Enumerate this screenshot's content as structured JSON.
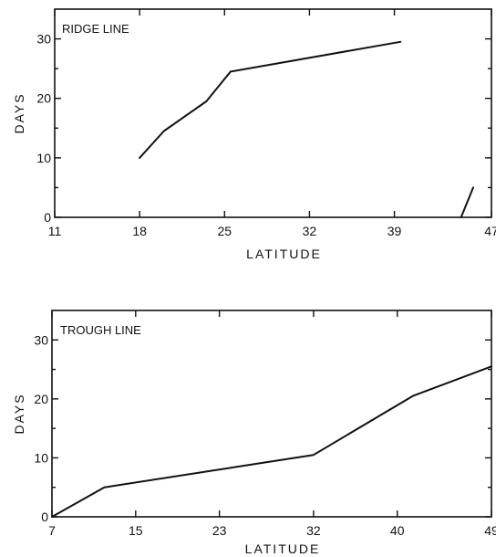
{
  "chart_data": [
    {
      "type": "line",
      "title": "RIDGE LINE",
      "xlabel": "LATITUDE",
      "ylabel": "DAYS",
      "x_ticks": [
        "11",
        "18",
        "25",
        "32",
        "39",
        "47"
      ],
      "y_ticks": [
        "0",
        "10",
        "20",
        "30"
      ],
      "xlim": [
        11,
        47
      ],
      "ylim": [
        0,
        35
      ],
      "grid": false,
      "series": [
        {
          "x": [
            18,
            20,
            23.5,
            25.5,
            39.5
          ],
          "y": [
            10,
            14.5,
            19.5,
            24.5,
            29.5
          ]
        },
        {
          "x": [
            44.5,
            45.5
          ],
          "y": [
            0,
            5
          ]
        }
      ]
    },
    {
      "type": "line",
      "title": "TROUGH LINE",
      "xlabel": "LATITUDE",
      "ylabel": "DAYS",
      "x_ticks": [
        "7",
        "15",
        "23",
        "32",
        "40",
        "49"
      ],
      "y_ticks": [
        "0",
        "10",
        "20",
        "30"
      ],
      "xlim": [
        7,
        49
      ],
      "ylim": [
        0,
        35
      ],
      "grid": false,
      "series": [
        {
          "x": [
            7,
            12,
            32,
            41.5,
            49
          ],
          "y": [
            0,
            5,
            10.5,
            20.5,
            25.5
          ]
        }
      ]
    }
  ]
}
